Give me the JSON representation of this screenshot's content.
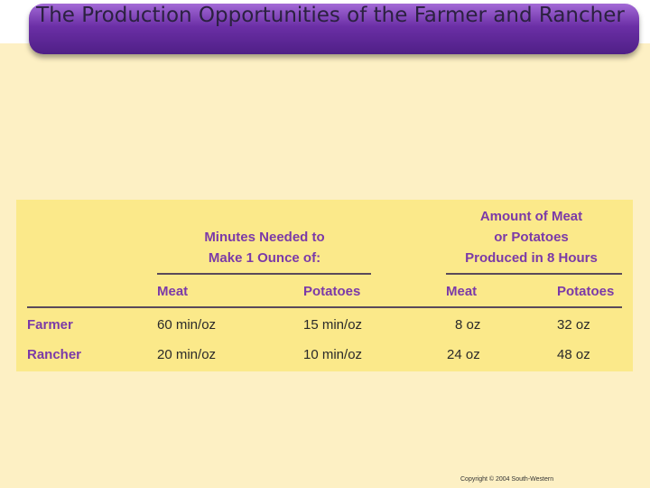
{
  "slide": {
    "title": "The Production Opportunities of the Farmer and Rancher",
    "copyright": "Copyright © 2004  South-Western"
  },
  "table": {
    "group_headers": {
      "minutes": [
        "Minutes Needed to",
        "Make 1 Ounce of:"
      ],
      "amount": [
        "Amount of Meat",
        "or Potatoes",
        "Produced in 8 Hours"
      ]
    },
    "columns": [
      "Meat",
      "Potatoes",
      "Meat",
      "Potatoes"
    ],
    "rows": [
      {
        "name": "Farmer",
        "values": [
          "60 min/oz",
          "15 min/oz",
          "8 oz",
          "32 oz"
        ]
      },
      {
        "name": "Rancher",
        "values": [
          "20 min/oz",
          "10 min/oz",
          "24 oz",
          "48 oz"
        ]
      }
    ]
  },
  "colors": {
    "background": "#fdf0c4",
    "table_background": "#fbe98a",
    "header_text": "#7b3aa8",
    "title_bar": "#6b2fa6"
  }
}
